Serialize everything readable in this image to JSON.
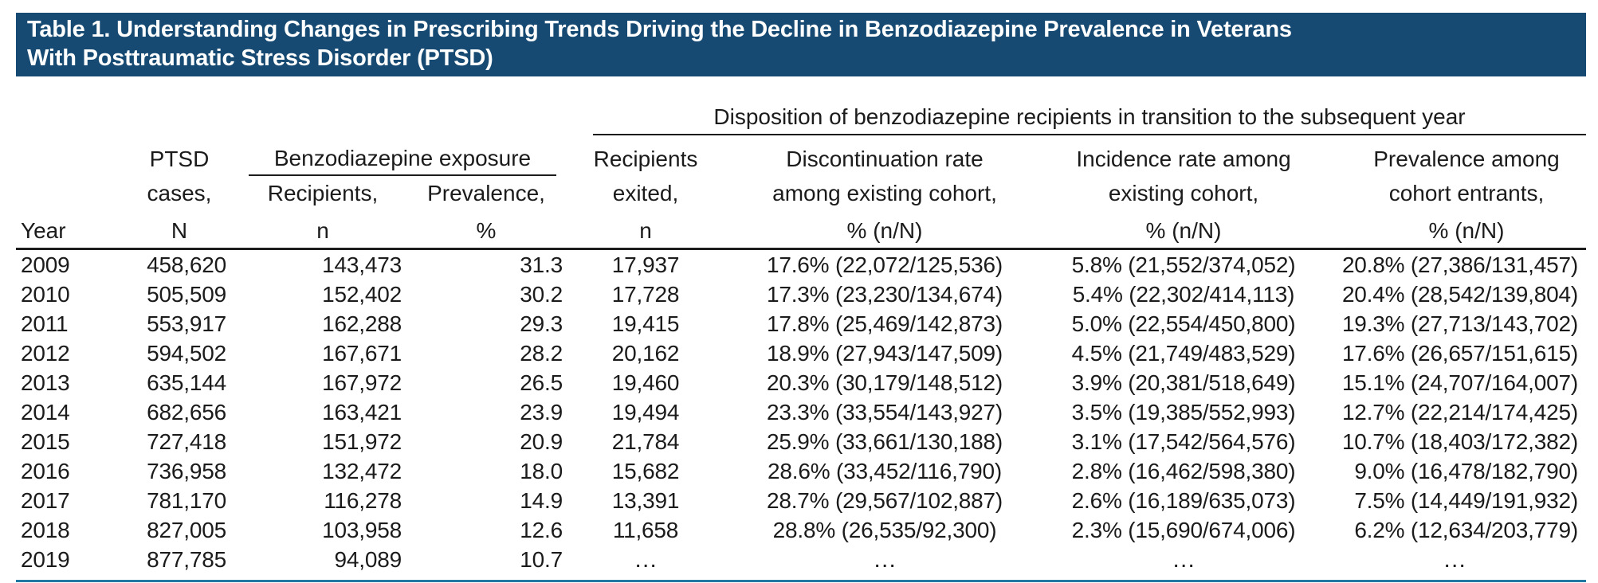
{
  "title": {
    "line1": "Table 1. Understanding Changes in Prescribing Trends Driving the Decline in Benzodiazepine Prevalence in Veterans",
    "line2": "With Posttraumatic Stress Disorder (PTSD)"
  },
  "colors": {
    "title_bar_background": "#164a72",
    "title_text": "#ffffff",
    "bottom_rule": "#2279a2",
    "table_rules": "#1c1c1c",
    "body_text": "#1b1b1b"
  },
  "table": {
    "group_headers": {
      "benzo": "Benzodiazepine exposure",
      "disposition": "Disposition of benzodiazepine recipients in transition to the subsequent year"
    },
    "columns": {
      "year": {
        "l3": "Year"
      },
      "ptsd": {
        "l1": "PTSD",
        "l2": "cases,",
        "l3": "N"
      },
      "recipients": {
        "l1": "Recipients,",
        "l2": "n"
      },
      "prevalence": {
        "l1": "Prevalence,",
        "l2": "%"
      },
      "exited": {
        "l1": "Recipients",
        "l2": "exited,",
        "l3": "n"
      },
      "discontinuation": {
        "l1": "Discontinuation rate",
        "l2": "among existing cohort,",
        "l3": "% (n/N)"
      },
      "incidence": {
        "l1": "Incidence rate among",
        "l2": "existing cohort,",
        "l3": "% (n/N)"
      },
      "entrants": {
        "l1": "Prevalence among",
        "l2": "cohort entrants,",
        "l3": "% (n/N)"
      }
    },
    "ellipsis": "…",
    "rows": [
      [
        "2009",
        "458,620",
        "143,473",
        "31.3",
        "17,937",
        "17.6% (22,072/125,536)",
        "5.8% (21,552/374,052)",
        "20.8% (27,386/131,457)"
      ],
      [
        "2010",
        "505,509",
        "152,402",
        "30.2",
        "17,728",
        "17.3% (23,230/134,674)",
        "5.4% (22,302/414,113)",
        "20.4% (28,542/139,804)"
      ],
      [
        "2011",
        "553,917",
        "162,288",
        "29.3",
        "19,415",
        "17.8% (25,469/142,873)",
        "5.0% (22,554/450,800)",
        "19.3% (27,713/143,702)"
      ],
      [
        "2012",
        "594,502",
        "167,671",
        "28.2",
        "20,162",
        "18.9% (27,943/147,509)",
        "4.5% (21,749/483,529)",
        "17.6% (26,657/151,615)"
      ],
      [
        "2013",
        "635,144",
        "167,972",
        "26.5",
        "19,460",
        "20.3% (30,179/148,512)",
        "3.9% (20,381/518,649)",
        "15.1% (24,707/164,007)"
      ],
      [
        "2014",
        "682,656",
        "163,421",
        "23.9",
        "19,494",
        "23.3% (33,554/143,927)",
        "3.5% (19,385/552,993)",
        "12.7% (22,214/174,425)"
      ],
      [
        "2015",
        "727,418",
        "151,972",
        "20.9",
        "21,784",
        "25.9% (33,661/130,188)",
        "3.1% (17,542/564,576)",
        "10.7% (18,403/172,382)"
      ],
      [
        "2016",
        "736,958",
        "132,472",
        "18.0",
        "15,682",
        "28.6% (33,452/116,790)",
        "2.8% (16,462/598,380)",
        "9.0% (16,478/182,790)"
      ],
      [
        "2017",
        "781,170",
        "116,278",
        "14.9",
        "13,391",
        "28.7% (29,567/102,887)",
        "2.6% (16,189/635,073)",
        "7.5% (14,449/191,932)"
      ],
      [
        "2018",
        "827,005",
        "103,958",
        "12.6",
        "11,658",
        "28.8% (26,535/92,300)",
        "2.3% (15,690/674,006)",
        "6.2% (12,634/203,779)"
      ],
      [
        "2019",
        "877,785",
        "94,089",
        "10.7",
        "…",
        "…",
        "…",
        "…"
      ]
    ]
  }
}
